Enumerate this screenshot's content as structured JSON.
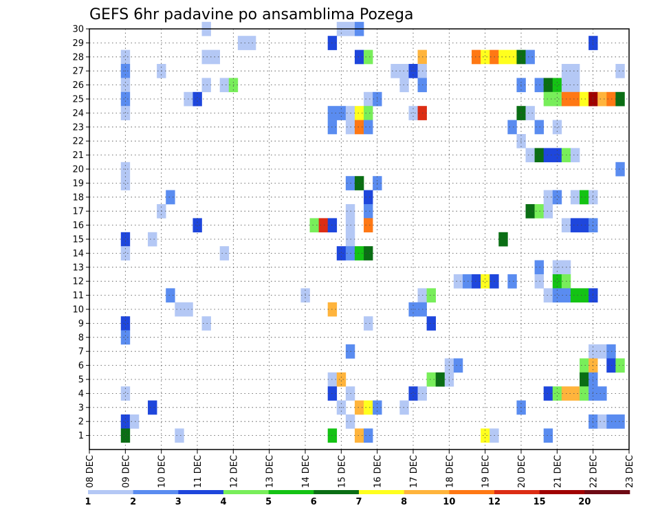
{
  "chart_data": {
    "type": "heatmap",
    "title": "GEFS 6hr padavine po ansamblima Pozega",
    "xlabel": "",
    "ylabel": "",
    "x_tick_labels": [
      "08 DEC",
      "09 DEC",
      "10 DEC",
      "11 DEC",
      "12 DEC",
      "13 DEC",
      "14 DEC",
      "15 DEC",
      "16 DEC",
      "17 DEC",
      "18 DEC",
      "19 DEC",
      "20 DEC",
      "21 DEC",
      "22 DEC",
      "23 DEC"
    ],
    "x_range_days": [
      0,
      15
    ],
    "y_tick_labels": [
      "1",
      "2",
      "3",
      "4",
      "5",
      "6",
      "7",
      "8",
      "9",
      "10",
      "11",
      "12",
      "13",
      "14",
      "15",
      "16",
      "17",
      "18",
      "19",
      "20",
      "21",
      "22",
      "23",
      "24",
      "25",
      "26",
      "27",
      "28",
      "29",
      "30"
    ],
    "y_range": [
      0,
      30
    ],
    "grid": true,
    "colorbar": {
      "position": "bottom",
      "labels": [
        "1",
        "2",
        "3",
        "4",
        "5",
        "6",
        "7",
        "8",
        "10",
        "12",
        "15",
        "20"
      ],
      "colors": [
        "#b4c8f5",
        "#5a8cf0",
        "#1e46dc",
        "#78ee5a",
        "#14c314",
        "#0a6e14",
        "#ffff1e",
        "#ffb43c",
        "#ff7814",
        "#dc2d14",
        "#a00000",
        "#6e0a14"
      ]
    },
    "cells": [
      {
        "day": 3.25,
        "member": 30,
        "c": 0
      },
      {
        "day": 7.0,
        "member": 30,
        "c": 0
      },
      {
        "day": 7.25,
        "member": 30,
        "c": 0
      },
      {
        "day": 7.5,
        "member": 30,
        "c": 1
      },
      {
        "day": 4.25,
        "member": 29,
        "c": 0
      },
      {
        "day": 4.5,
        "member": 29,
        "c": 0
      },
      {
        "day": 6.75,
        "member": 29,
        "c": 2
      },
      {
        "day": 14.0,
        "member": 29,
        "c": 2
      },
      {
        "day": 1.0,
        "member": 28,
        "c": 0
      },
      {
        "day": 3.25,
        "member": 28,
        "c": 0
      },
      {
        "day": 3.5,
        "member": 28,
        "c": 0
      },
      {
        "day": 7.5,
        "member": 28,
        "c": 2
      },
      {
        "day": 7.75,
        "member": 28,
        "c": 3
      },
      {
        "day": 9.25,
        "member": 28,
        "c": 7
      },
      {
        "day": 10.75,
        "member": 28,
        "c": 8
      },
      {
        "day": 11.0,
        "member": 28,
        "c": 6
      },
      {
        "day": 11.25,
        "member": 28,
        "c": 8
      },
      {
        "day": 11.5,
        "member": 28,
        "c": 6
      },
      {
        "day": 11.75,
        "member": 28,
        "c": 6
      },
      {
        "day": 12.0,
        "member": 28,
        "c": 5
      },
      {
        "day": 12.25,
        "member": 28,
        "c": 1
      },
      {
        "day": 1.0,
        "member": 27,
        "c": 1
      },
      {
        "day": 2.0,
        "member": 27,
        "c": 0
      },
      {
        "day": 8.5,
        "member": 27,
        "c": 0
      },
      {
        "day": 8.75,
        "member": 27,
        "c": 0
      },
      {
        "day": 9.0,
        "member": 27,
        "c": 2
      },
      {
        "day": 9.25,
        "member": 27,
        "c": 0
      },
      {
        "day": 13.25,
        "member": 27,
        "c": 0
      },
      {
        "day": 13.5,
        "member": 27,
        "c": 0
      },
      {
        "day": 14.75,
        "member": 27,
        "c": 0
      },
      {
        "day": 1.0,
        "member": 26,
        "c": 0
      },
      {
        "day": 3.25,
        "member": 26,
        "c": 0
      },
      {
        "day": 3.75,
        "member": 26,
        "c": 0
      },
      {
        "day": 4.0,
        "member": 26,
        "c": 3
      },
      {
        "day": 8.75,
        "member": 26,
        "c": 0
      },
      {
        "day": 9.25,
        "member": 26,
        "c": 1
      },
      {
        "day": 12.0,
        "member": 26,
        "c": 1
      },
      {
        "day": 12.5,
        "member": 26,
        "c": 1
      },
      {
        "day": 12.75,
        "member": 26,
        "c": 5
      },
      {
        "day": 13.0,
        "member": 26,
        "c": 4
      },
      {
        "day": 13.25,
        "member": 26,
        "c": 0
      },
      {
        "day": 13.5,
        "member": 26,
        "c": 0
      },
      {
        "day": 1.0,
        "member": 25,
        "c": 1
      },
      {
        "day": 2.75,
        "member": 25,
        "c": 0
      },
      {
        "day": 3.0,
        "member": 25,
        "c": 2
      },
      {
        "day": 7.75,
        "member": 25,
        "c": 0
      },
      {
        "day": 8.0,
        "member": 25,
        "c": 1
      },
      {
        "day": 12.75,
        "member": 25,
        "c": 3
      },
      {
        "day": 13.0,
        "member": 25,
        "c": 3
      },
      {
        "day": 13.25,
        "member": 25,
        "c": 8
      },
      {
        "day": 13.5,
        "member": 25,
        "c": 8
      },
      {
        "day": 13.75,
        "member": 25,
        "c": 6
      },
      {
        "day": 14.0,
        "member": 25,
        "c": 10
      },
      {
        "day": 14.25,
        "member": 25,
        "c": 7
      },
      {
        "day": 14.5,
        "member": 25,
        "c": 8
      },
      {
        "day": 14.75,
        "member": 25,
        "c": 5
      },
      {
        "day": 1.0,
        "member": 24,
        "c": 0
      },
      {
        "day": 6.75,
        "member": 24,
        "c": 1
      },
      {
        "day": 7.0,
        "member": 24,
        "c": 1
      },
      {
        "day": 7.25,
        "member": 24,
        "c": 0
      },
      {
        "day": 7.5,
        "member": 24,
        "c": 6
      },
      {
        "day": 7.75,
        "member": 24,
        "c": 3
      },
      {
        "day": 9.0,
        "member": 24,
        "c": 0
      },
      {
        "day": 9.25,
        "member": 24,
        "c": 9
      },
      {
        "day": 12.0,
        "member": 24,
        "c": 5
      },
      {
        "day": 12.25,
        "member": 24,
        "c": 0
      },
      {
        "day": 6.75,
        "member": 23,
        "c": 1
      },
      {
        "day": 7.25,
        "member": 23,
        "c": 0
      },
      {
        "day": 7.5,
        "member": 23,
        "c": 8
      },
      {
        "day": 7.75,
        "member": 23,
        "c": 1
      },
      {
        "day": 11.75,
        "member": 23,
        "c": 1
      },
      {
        "day": 12.5,
        "member": 23,
        "c": 1
      },
      {
        "day": 13.0,
        "member": 23,
        "c": 0
      },
      {
        "day": 12.0,
        "member": 22,
        "c": 0
      },
      {
        "day": 12.25,
        "member": 21,
        "c": 0
      },
      {
        "day": 12.5,
        "member": 21,
        "c": 5
      },
      {
        "day": 12.75,
        "member": 21,
        "c": 2
      },
      {
        "day": 13.0,
        "member": 21,
        "c": 2
      },
      {
        "day": 13.25,
        "member": 21,
        "c": 3
      },
      {
        "day": 13.5,
        "member": 21,
        "c": 0
      },
      {
        "day": 1.0,
        "member": 20,
        "c": 0
      },
      {
        "day": 14.75,
        "member": 20,
        "c": 1
      },
      {
        "day": 1.0,
        "member": 19,
        "c": 0
      },
      {
        "day": 7.25,
        "member": 19,
        "c": 1
      },
      {
        "day": 7.5,
        "member": 19,
        "c": 5
      },
      {
        "day": 8.0,
        "member": 19,
        "c": 1
      },
      {
        "day": 2.25,
        "member": 18,
        "c": 1
      },
      {
        "day": 7.75,
        "member": 18,
        "c": 2
      },
      {
        "day": 12.75,
        "member": 18,
        "c": 0
      },
      {
        "day": 13.0,
        "member": 18,
        "c": 1
      },
      {
        "day": 13.5,
        "member": 18,
        "c": 0
      },
      {
        "day": 13.75,
        "member": 18,
        "c": 4
      },
      {
        "day": 14.0,
        "member": 18,
        "c": 0
      },
      {
        "day": 2.0,
        "member": 17,
        "c": 0
      },
      {
        "day": 7.25,
        "member": 17,
        "c": 0
      },
      {
        "day": 7.75,
        "member": 17,
        "c": 1
      },
      {
        "day": 12.25,
        "member": 17,
        "c": 5
      },
      {
        "day": 12.5,
        "member": 17,
        "c": 3
      },
      {
        "day": 12.75,
        "member": 17,
        "c": 0
      },
      {
        "day": 3.0,
        "member": 16,
        "c": 2
      },
      {
        "day": 6.25,
        "member": 16,
        "c": 3
      },
      {
        "day": 6.5,
        "member": 16,
        "c": 9
      },
      {
        "day": 6.75,
        "member": 16,
        "c": 2
      },
      {
        "day": 7.25,
        "member": 16,
        "c": 0
      },
      {
        "day": 7.75,
        "member": 16,
        "c": 8
      },
      {
        "day": 13.25,
        "member": 16,
        "c": 0
      },
      {
        "day": 13.5,
        "member": 16,
        "c": 2
      },
      {
        "day": 13.75,
        "member": 16,
        "c": 2
      },
      {
        "day": 14.0,
        "member": 16,
        "c": 1
      },
      {
        "day": 1.0,
        "member": 15,
        "c": 2
      },
      {
        "day": 1.75,
        "member": 15,
        "c": 0
      },
      {
        "day": 7.25,
        "member": 15,
        "c": 0
      },
      {
        "day": 11.5,
        "member": 15,
        "c": 5
      },
      {
        "day": 1.0,
        "member": 14,
        "c": 0
      },
      {
        "day": 3.75,
        "member": 14,
        "c": 0
      },
      {
        "day": 7.0,
        "member": 14,
        "c": 2
      },
      {
        "day": 7.25,
        "member": 14,
        "c": 1
      },
      {
        "day": 7.5,
        "member": 14,
        "c": 4
      },
      {
        "day": 7.75,
        "member": 14,
        "c": 5
      },
      {
        "day": 12.5,
        "member": 13,
        "c": 1
      },
      {
        "day": 13.0,
        "member": 13,
        "c": 0
      },
      {
        "day": 13.25,
        "member": 13,
        "c": 0
      },
      {
        "day": 10.25,
        "member": 12,
        "c": 0
      },
      {
        "day": 10.5,
        "member": 12,
        "c": 1
      },
      {
        "day": 10.75,
        "member": 12,
        "c": 2
      },
      {
        "day": 11.0,
        "member": 12,
        "c": 6
      },
      {
        "day": 11.25,
        "member": 12,
        "c": 2
      },
      {
        "day": 11.75,
        "member": 12,
        "c": 1
      },
      {
        "day": 12.5,
        "member": 12,
        "c": 0
      },
      {
        "day": 13.0,
        "member": 12,
        "c": 4
      },
      {
        "day": 13.25,
        "member": 12,
        "c": 3
      },
      {
        "day": 2.25,
        "member": 11,
        "c": 1
      },
      {
        "day": 6.0,
        "member": 11,
        "c": 0
      },
      {
        "day": 9.25,
        "member": 11,
        "c": 0
      },
      {
        "day": 9.5,
        "member": 11,
        "c": 3
      },
      {
        "day": 12.75,
        "member": 11,
        "c": 0
      },
      {
        "day": 13.0,
        "member": 11,
        "c": 1
      },
      {
        "day": 13.25,
        "member": 11,
        "c": 1
      },
      {
        "day": 13.5,
        "member": 11,
        "c": 4
      },
      {
        "day": 13.75,
        "member": 11,
        "c": 4
      },
      {
        "day": 14.0,
        "member": 11,
        "c": 2
      },
      {
        "day": 2.5,
        "member": 10,
        "c": 0
      },
      {
        "day": 2.75,
        "member": 10,
        "c": 0
      },
      {
        "day": 6.75,
        "member": 10,
        "c": 7
      },
      {
        "day": 9.0,
        "member": 10,
        "c": 1
      },
      {
        "day": 9.25,
        "member": 10,
        "c": 1
      },
      {
        "day": 1.0,
        "member": 9,
        "c": 2
      },
      {
        "day": 3.25,
        "member": 9,
        "c": 0
      },
      {
        "day": 7.75,
        "member": 9,
        "c": 0
      },
      {
        "day": 9.5,
        "member": 9,
        "c": 2
      },
      {
        "day": 1.0,
        "member": 8,
        "c": 1
      },
      {
        "day": 7.25,
        "member": 7,
        "c": 1
      },
      {
        "day": 14.0,
        "member": 7,
        "c": 0
      },
      {
        "day": 14.25,
        "member": 7,
        "c": 0
      },
      {
        "day": 14.5,
        "member": 7,
        "c": 1
      },
      {
        "day": 10.0,
        "member": 6,
        "c": 0
      },
      {
        "day": 10.25,
        "member": 6,
        "c": 1
      },
      {
        "day": 13.75,
        "member": 6,
        "c": 3
      },
      {
        "day": 14.0,
        "member": 6,
        "c": 7
      },
      {
        "day": 14.5,
        "member": 6,
        "c": 2
      },
      {
        "day": 14.75,
        "member": 6,
        "c": 3
      },
      {
        "day": 6.75,
        "member": 5,
        "c": 0
      },
      {
        "day": 7.0,
        "member": 5,
        "c": 7
      },
      {
        "day": 9.5,
        "member": 5,
        "c": 3
      },
      {
        "day": 9.75,
        "member": 5,
        "c": 5
      },
      {
        "day": 10.0,
        "member": 5,
        "c": 0
      },
      {
        "day": 13.75,
        "member": 5,
        "c": 5
      },
      {
        "day": 14.0,
        "member": 5,
        "c": 1
      },
      {
        "day": 1.0,
        "member": 4,
        "c": 0
      },
      {
        "day": 6.75,
        "member": 4,
        "c": 2
      },
      {
        "day": 7.25,
        "member": 4,
        "c": 0
      },
      {
        "day": 9.0,
        "member": 4,
        "c": 2
      },
      {
        "day": 9.25,
        "member": 4,
        "c": 0
      },
      {
        "day": 12.75,
        "member": 4,
        "c": 2
      },
      {
        "day": 13.0,
        "member": 4,
        "c": 3
      },
      {
        "day": 13.25,
        "member": 4,
        "c": 7
      },
      {
        "day": 13.5,
        "member": 4,
        "c": 7
      },
      {
        "day": 13.75,
        "member": 4,
        "c": 3
      },
      {
        "day": 14.0,
        "member": 4,
        "c": 1
      },
      {
        "day": 14.25,
        "member": 4,
        "c": 1
      },
      {
        "day": 1.75,
        "member": 3,
        "c": 2
      },
      {
        "day": 7.0,
        "member": 3,
        "c": 0
      },
      {
        "day": 7.5,
        "member": 3,
        "c": 7
      },
      {
        "day": 7.75,
        "member": 3,
        "c": 6
      },
      {
        "day": 8.0,
        "member": 3,
        "c": 1
      },
      {
        "day": 8.75,
        "member": 3,
        "c": 0
      },
      {
        "day": 12.0,
        "member": 3,
        "c": 1
      },
      {
        "day": 1.0,
        "member": 2,
        "c": 2
      },
      {
        "day": 1.25,
        "member": 2,
        "c": 0
      },
      {
        "day": 7.25,
        "member": 2,
        "c": 0
      },
      {
        "day": 14.0,
        "member": 2,
        "c": 1
      },
      {
        "day": 14.25,
        "member": 2,
        "c": 0
      },
      {
        "day": 14.5,
        "member": 2,
        "c": 1
      },
      {
        "day": 14.75,
        "member": 2,
        "c": 1
      },
      {
        "day": 1.0,
        "member": 1,
        "c": 5
      },
      {
        "day": 2.5,
        "member": 1,
        "c": 0
      },
      {
        "day": 6.75,
        "member": 1,
        "c": 4
      },
      {
        "day": 7.5,
        "member": 1,
        "c": 7
      },
      {
        "day": 7.75,
        "member": 1,
        "c": 1
      },
      {
        "day": 11.0,
        "member": 1,
        "c": 6
      },
      {
        "day": 11.25,
        "member": 1,
        "c": 0
      },
      {
        "day": 12.75,
        "member": 1,
        "c": 1
      }
    ]
  }
}
